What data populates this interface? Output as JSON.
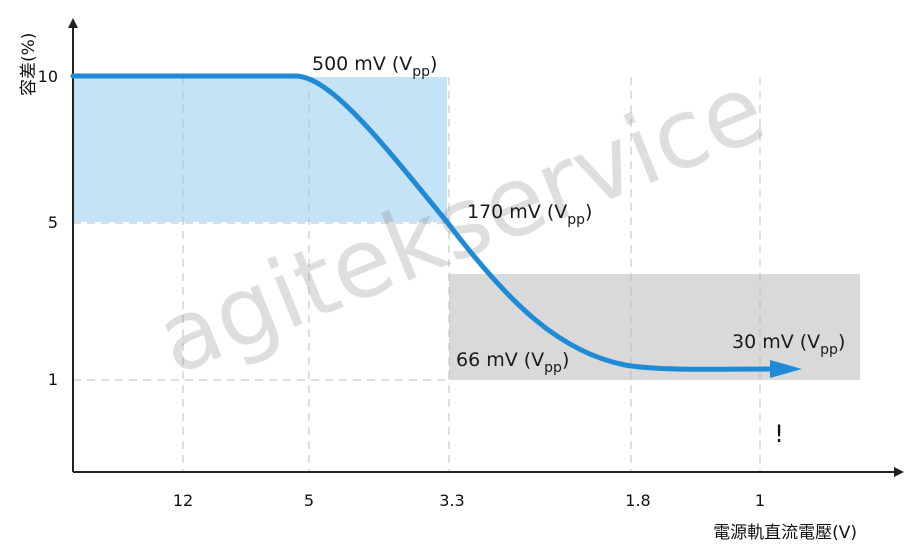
{
  "chart_data": {
    "type": "line",
    "title": "",
    "xlabel": "電源軌直流電壓(V)",
    "ylabel": "容差(%)",
    "x_categories": [
      "12",
      "5",
      "3.3",
      "1.8",
      "1"
    ],
    "y_ticks": [
      "10",
      "5",
      "1"
    ],
    "grid": true,
    "series": [
      {
        "values": [
          {
            "x": "12",
            "y": 10
          },
          {
            "x": "5",
            "y": 10
          },
          {
            "x": "3.3",
            "y": 5
          },
          {
            "x": "1.8",
            "y": 1
          },
          {
            "x": "1",
            "y": 1
          }
        ]
      }
    ],
    "annotations": [
      {
        "text": "500 mV (V",
        "sub": "pp",
        "close": ")"
      },
      {
        "text": "170 mV (V",
        "sub": "pp",
        "close": ")"
      },
      {
        "text": "66 mV (V",
        "sub": "pp",
        "close": ")"
      },
      {
        "text": "30 mV (V",
        "sub": "pp",
        "close": ")"
      }
    ],
    "marker_text": "!",
    "watermark": "agitekservice",
    "colors": {
      "line": "#1f8ad6",
      "tolerance_band_high": "#c5e3f7",
      "tolerance_band_low": "#d9d9da",
      "grid": "#bdbdbd",
      "axis": "#222222"
    }
  }
}
